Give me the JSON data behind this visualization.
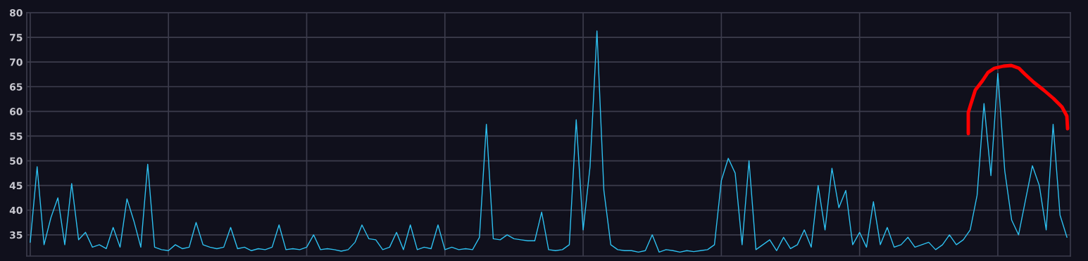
{
  "chart_data": {
    "type": "line",
    "line_style": "solid",
    "marker": "none",
    "grid": true,
    "legend": false,
    "tick_labels": "y",
    "ylim": [
      30.7,
      80
    ],
    "yticks": [
      35,
      40,
      45,
      50,
      55,
      60,
      65,
      70,
      75,
      80
    ],
    "categories": [
      null,
      null,
      null,
      null,
      null,
      null,
      null,
      null,
      null,
      null,
      null,
      null,
      null,
      null,
      null,
      null,
      null,
      null,
      null,
      null,
      null,
      null,
      null,
      null,
      null,
      null,
      null,
      null,
      null,
      null,
      null,
      null,
      null,
      null,
      null,
      null,
      null,
      null,
      null,
      null,
      null,
      null,
      null,
      null,
      null,
      null,
      null,
      null,
      null,
      null,
      null,
      null,
      null,
      null,
      null,
      null,
      null,
      null,
      null,
      null,
      null,
      null,
      null,
      null,
      null,
      null,
      null,
      null,
      null,
      null,
      null,
      null,
      null,
      null,
      null,
      null,
      null,
      null,
      null,
      null,
      null,
      null,
      null,
      null,
      null,
      null,
      null,
      null,
      null,
      null,
      null,
      null,
      null,
      null,
      null,
      null,
      null,
      null,
      null,
      null,
      null,
      null,
      null,
      null,
      null,
      null,
      null,
      null,
      null,
      null,
      null,
      null,
      null,
      null,
      null,
      null,
      null,
      null,
      null,
      null,
      null,
      null,
      null,
      null,
      null,
      null,
      null,
      null,
      null,
      null,
      null,
      null,
      null,
      null,
      null,
      null,
      null,
      null,
      null,
      null,
      null,
      null,
      null,
      null,
      null,
      null,
      null,
      null,
      null,
      null,
      null
    ],
    "series": [
      {
        "color": "#2ec0f0",
        "values": [
          33.5,
          48.8,
          33,
          38.5,
          42.5,
          33,
          45.4,
          34,
          35.5,
          32.5,
          33,
          32.2,
          36.5,
          32.5,
          42.3,
          37.8,
          32.5,
          49.3,
          32.5,
          32,
          31.8,
          33,
          32.2,
          32.5,
          37.5,
          33,
          32.5,
          32.2,
          32.5,
          36.5,
          32.2,
          32.5,
          31.8,
          32.2,
          32,
          32.5,
          37,
          32,
          32.2,
          32,
          32.5,
          35,
          32,
          32.2,
          32,
          31.7,
          32,
          33.5,
          37,
          34.2,
          34,
          32,
          32.5,
          35.5,
          32,
          37,
          32,
          32.5,
          32.2,
          37,
          32,
          32.5,
          32,
          32.2,
          32,
          34.5,
          57.4,
          34.2,
          34,
          35,
          34.2,
          34,
          33.8,
          33.8,
          39.6,
          32,
          31.8,
          32,
          33,
          58.3,
          36,
          48.8,
          76.3,
          44,
          33,
          32,
          31.8,
          31.8,
          31.5,
          31.8,
          35,
          31.5,
          32,
          31.8,
          31.5,
          31.8,
          31.6,
          31.8,
          32,
          33,
          46,
          50.5,
          47.5,
          33,
          50,
          32,
          33,
          34,
          31.8,
          34.5,
          32.2,
          33,
          36,
          32.5,
          45,
          36,
          48.5,
          40.5,
          44,
          33,
          35.5,
          32.5,
          41.7,
          33,
          36.5,
          32.5,
          33,
          34.5,
          32.5,
          33,
          33.5,
          32,
          33,
          35,
          33,
          34,
          36,
          43,
          61.6,
          47,
          67.7,
          48,
          38,
          35,
          42,
          49,
          45,
          36,
          57.4,
          39,
          34.5
        ]
      }
    ]
  }
}
